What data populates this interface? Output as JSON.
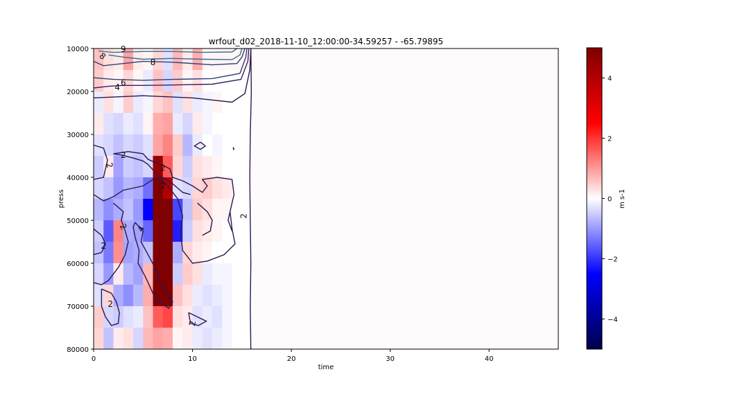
{
  "chart_data": {
    "type": "heatmap",
    "title": "wrfout_d02_2018-11-10_12:00:00-34.59257 - -65.79895",
    "xlabel": "time",
    "ylabel": "press",
    "xlim": [
      0,
      47
    ],
    "ylim": [
      80000,
      10000
    ],
    "x_ticks": [
      0,
      10,
      20,
      30,
      40
    ],
    "x_tick_labels": [
      "0",
      "10",
      "20",
      "30",
      "40"
    ],
    "y_ticks": [
      10000,
      20000,
      30000,
      40000,
      50000,
      60000,
      70000,
      80000
    ],
    "y_tick_labels": [
      "10000",
      "20000",
      "30000",
      "40000",
      "50000",
      "60000",
      "70000",
      "80000"
    ],
    "colorbar": {
      "label": "m s-1",
      "range": [
        -5,
        5
      ],
      "ticks": [
        4,
        2,
        0,
        -2,
        -4
      ],
      "tick_labels": [
        "4",
        "2",
        "0",
        "−2",
        "−4"
      ],
      "colormap": "seismic",
      "colors": [
        "#00004c",
        "#0000ff",
        "#ffffff",
        "#ff0000",
        "#7f0000"
      ]
    },
    "grid": false,
    "heatmap": {
      "x_edges": [
        0,
        1,
        2,
        3,
        4,
        5,
        6,
        7,
        8,
        9,
        10,
        11,
        12,
        13,
        14,
        15,
        16
      ],
      "y_edges": [
        10000,
        15000,
        20000,
        25000,
        30000,
        35000,
        40000,
        45000,
        50000,
        55000,
        60000,
        65000,
        70000,
        75000,
        80000
      ],
      "values_note": "rows top (10000) to bottom (80000); columns time 0..16; columns beyond 16 are ~0",
      "values": [
        [
          0.6,
          0.3,
          0.2,
          0.9,
          0.2,
          0.1,
          0.4,
          -0.3,
          0.7,
          0.2,
          0.8,
          0.1,
          0.1,
          0.1,
          0.1,
          0.1
        ],
        [
          0.5,
          0.2,
          0.1,
          0.4,
          0.1,
          -0.2,
          0.6,
          -0.4,
          0.5,
          0.1,
          0.3,
          0.0,
          0.0,
          0.0,
          0.0,
          0.0
        ],
        [
          -0.2,
          0.3,
          -0.1,
          0.5,
          -0.2,
          -0.1,
          0.4,
          0.6,
          -0.3,
          0.3,
          -0.2,
          -0.1,
          0.1,
          0.0,
          0.0,
          0.0
        ],
        [
          0.2,
          -0.3,
          -0.4,
          -0.2,
          -0.3,
          0.1,
          0.8,
          0.9,
          -0.2,
          -0.4,
          0.2,
          -0.1,
          0.0,
          0.0,
          0.0,
          0.0
        ],
        [
          -0.3,
          -0.4,
          -0.6,
          -0.4,
          -0.5,
          -0.3,
          0.9,
          1.2,
          0.5,
          -0.7,
          -0.2,
          0.0,
          -0.1,
          0.0,
          0.0,
          0.0
        ],
        [
          -0.5,
          0.2,
          -0.9,
          -0.5,
          -0.6,
          -0.4,
          4.5,
          1.6,
          0.4,
          -0.5,
          0.3,
          0.2,
          0.1,
          0.0,
          0.0,
          0.0
        ],
        [
          -0.4,
          -0.6,
          -1.0,
          -0.7,
          -0.8,
          -1.4,
          5.0,
          4.0,
          -0.3,
          -0.4,
          0.4,
          0.5,
          0.3,
          0.2,
          0.0,
          0.0
        ],
        [
          -0.7,
          -1.1,
          -0.8,
          -0.6,
          -1.0,
          -2.5,
          5.0,
          5.0,
          -1.8,
          -0.6,
          0.5,
          0.3,
          0.1,
          0.1,
          0.0,
          0.0
        ],
        [
          -0.5,
          -1.6,
          1.2,
          -0.8,
          -0.9,
          -1.5,
          5.0,
          5.0,
          -2.2,
          -0.5,
          0.3,
          0.2,
          0.1,
          0.0,
          0.0,
          0.0
        ],
        [
          -0.6,
          -1.3,
          1.1,
          -0.9,
          -0.8,
          -0.6,
          5.0,
          5.0,
          -0.8,
          0.4,
          0.2,
          0.1,
          0.0,
          0.0,
          0.0,
          0.0
        ],
        [
          -0.4,
          -1.0,
          0.2,
          -0.7,
          -0.9,
          0.7,
          5.0,
          5.0,
          -0.5,
          0.5,
          0.3,
          -0.2,
          -0.1,
          -0.1,
          0.0,
          0.0
        ],
        [
          -0.3,
          0.4,
          -0.8,
          -1.1,
          -0.7,
          0.8,
          5.0,
          5.0,
          0.6,
          0.3,
          -0.2,
          -0.3,
          -0.2,
          -0.1,
          0.0,
          0.0
        ],
        [
          0.5,
          -0.4,
          -0.5,
          -0.3,
          -0.2,
          0.6,
          1.6,
          1.8,
          0.3,
          0.2,
          -0.3,
          -0.2,
          -0.3,
          -0.1,
          0.0,
          0.0
        ],
        [
          0.4,
          -0.6,
          0.2,
          0.3,
          -0.4,
          0.7,
          0.9,
          0.8,
          0.1,
          0.2,
          -0.2,
          -0.3,
          -0.2,
          -0.1,
          0.0,
          0.0
        ]
      ]
    },
    "contour_labels": [
      {
        "text": "9",
        "x": 3.0,
        "y": 10200,
        "rot": 0
      },
      {
        "text": "8",
        "x": 0.9,
        "y": 11800,
        "rot": 40
      },
      {
        "text": "8",
        "x": 6.0,
        "y": 13200,
        "rot": 0
      },
      {
        "text": "6",
        "x": 3.0,
        "y": 18000,
        "rot": 0
      },
      {
        "text": "4",
        "x": 2.4,
        "y": 19000,
        "rot": 0
      },
      {
        "text": "2",
        "x": 3.0,
        "y": 34800,
        "rot": 0
      },
      {
        "text": "2",
        "x": 1.6,
        "y": 37200,
        "rot": 75
      },
      {
        "text": "2",
        "x": 7.0,
        "y": 37800,
        "rot": 0
      },
      {
        "text": "2",
        "x": 7.0,
        "y": 42000,
        "rot": 0
      },
      {
        "text": "2",
        "x": 15.2,
        "y": 49000,
        "rot": -90
      },
      {
        "text": "2",
        "x": 3.0,
        "y": 51500,
        "rot": 60
      },
      {
        "text": "4",
        "x": 4.8,
        "y": 52000,
        "rot": -60
      },
      {
        "text": "2",
        "x": 1.0,
        "y": 56000,
        "rot": 0
      },
      {
        "text": "2",
        "x": 1.7,
        "y": 69500,
        "rot": 0
      },
      {
        "text": "2",
        "x": 10.0,
        "y": 74000,
        "rot": -80
      }
    ]
  }
}
